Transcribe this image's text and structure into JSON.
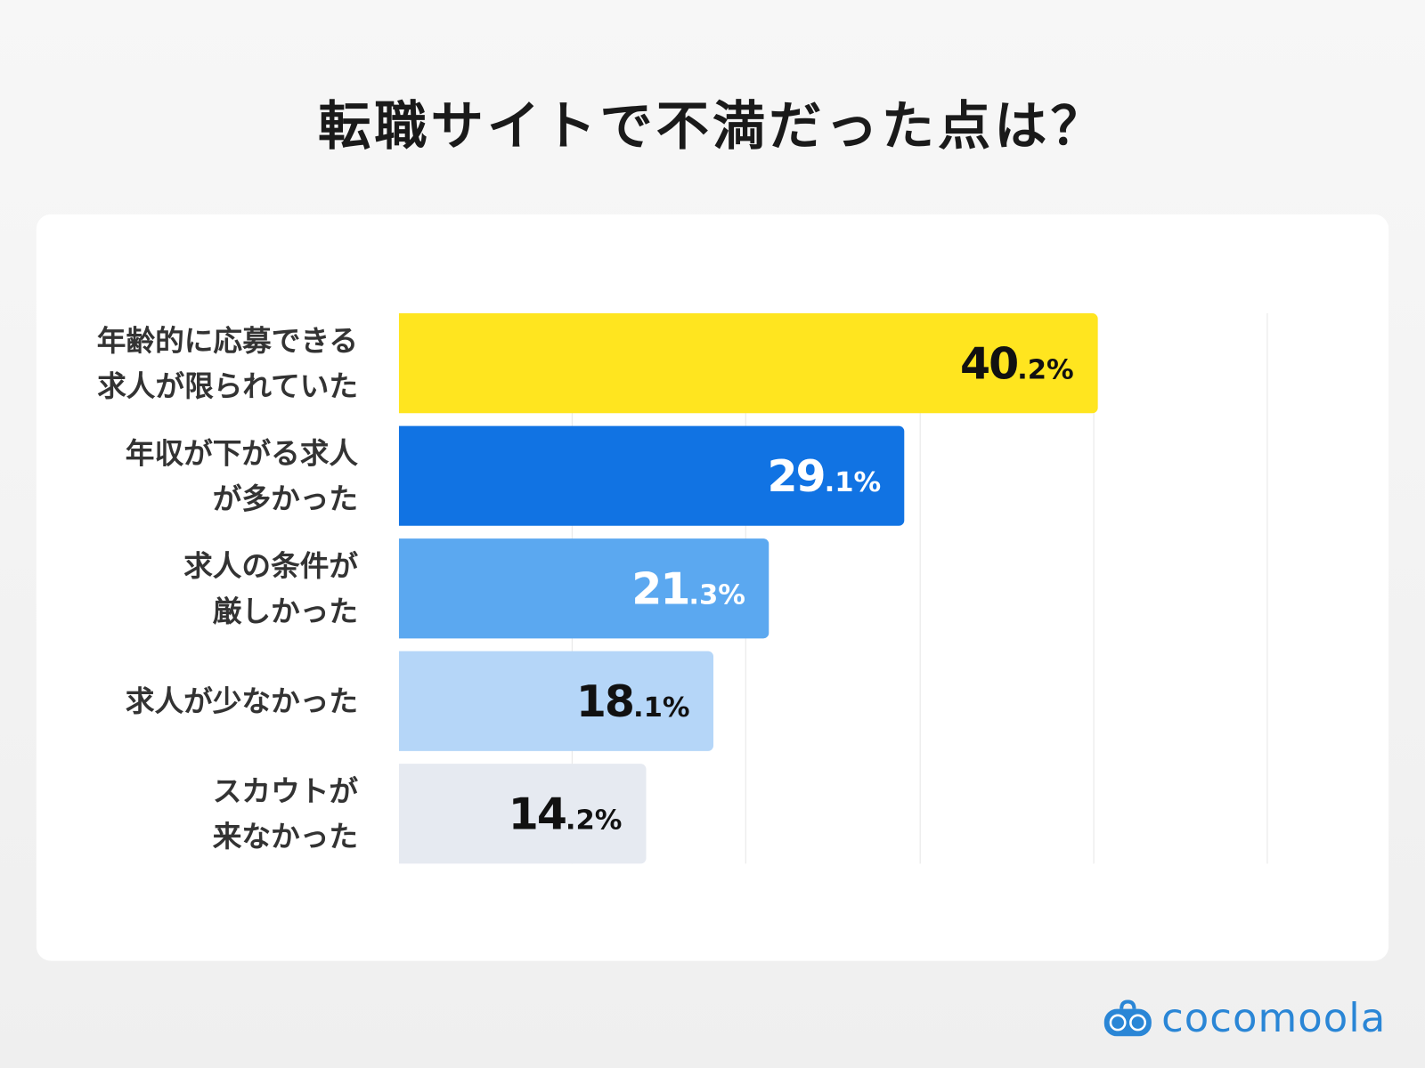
{
  "chart_data": {
    "type": "bar",
    "orientation": "horizontal",
    "title": "転職サイトで不満だった点は？",
    "categories": [
      [
        "年齢的に応募できる",
        "求人が限られていた"
      ],
      [
        "年収が下がる求人",
        "が多かった"
      ],
      [
        "求人の条件が",
        "厳しかった"
      ],
      [
        "求人が少なかった"
      ],
      [
        "スカウトが",
        "来なかった"
      ]
    ],
    "values": [
      40.2,
      29.1,
      21.3,
      18.1,
      14.2
    ],
    "unit": "%",
    "colors": [
      "#ffe51f",
      "#1173e3",
      "#5ba8f0",
      "#b5d6f8",
      "#e6eaf1"
    ],
    "label_colors": [
      "#111111",
      "#ffffff",
      "#ffffff",
      "#111111",
      "#111111"
    ],
    "xlim": [
      0,
      50
    ],
    "grid": true,
    "gridlines": [
      10,
      20,
      30,
      40,
      50
    ]
  },
  "brand": {
    "name": "cocomoola",
    "color": "#2a86d6"
  }
}
